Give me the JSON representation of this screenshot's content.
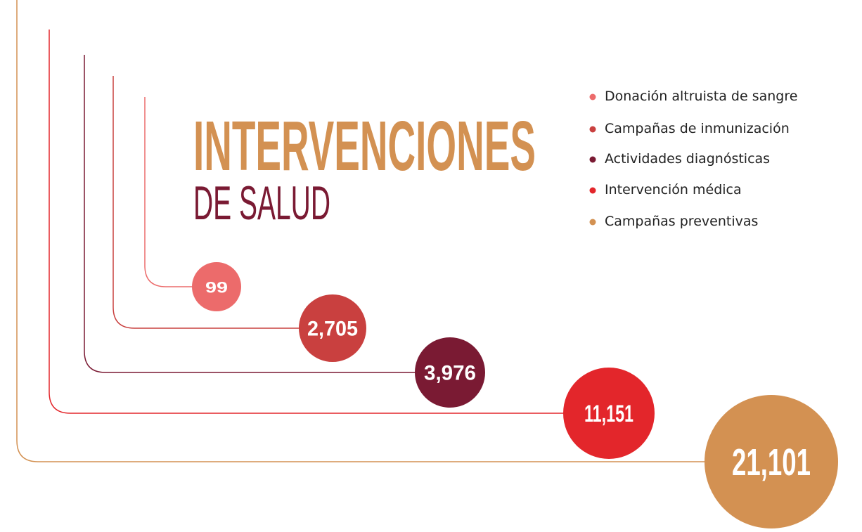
{
  "chart_data": {
    "type": "bubble",
    "title": "INTERVENCIONES",
    "subtitle": "DE SALUD",
    "categories": [
      "Donación altruista de sangre",
      "Campañas de inmunización",
      "Actividades diagnósticas",
      "Intervención médica",
      "Campañas preventivas"
    ],
    "values": [
      99,
      2705,
      3976,
      11151,
      21101
    ],
    "value_labels": [
      "99",
      "2,705",
      "3,976",
      "11,151",
      "21,101"
    ],
    "colors": [
      "#ec6b6b",
      "#c9403f",
      "#7a1a33",
      "#e3262b",
      "#d39152"
    ],
    "title_color": "#d39152",
    "subtitle_color": "#7a1a33",
    "legend": "top-right"
  }
}
